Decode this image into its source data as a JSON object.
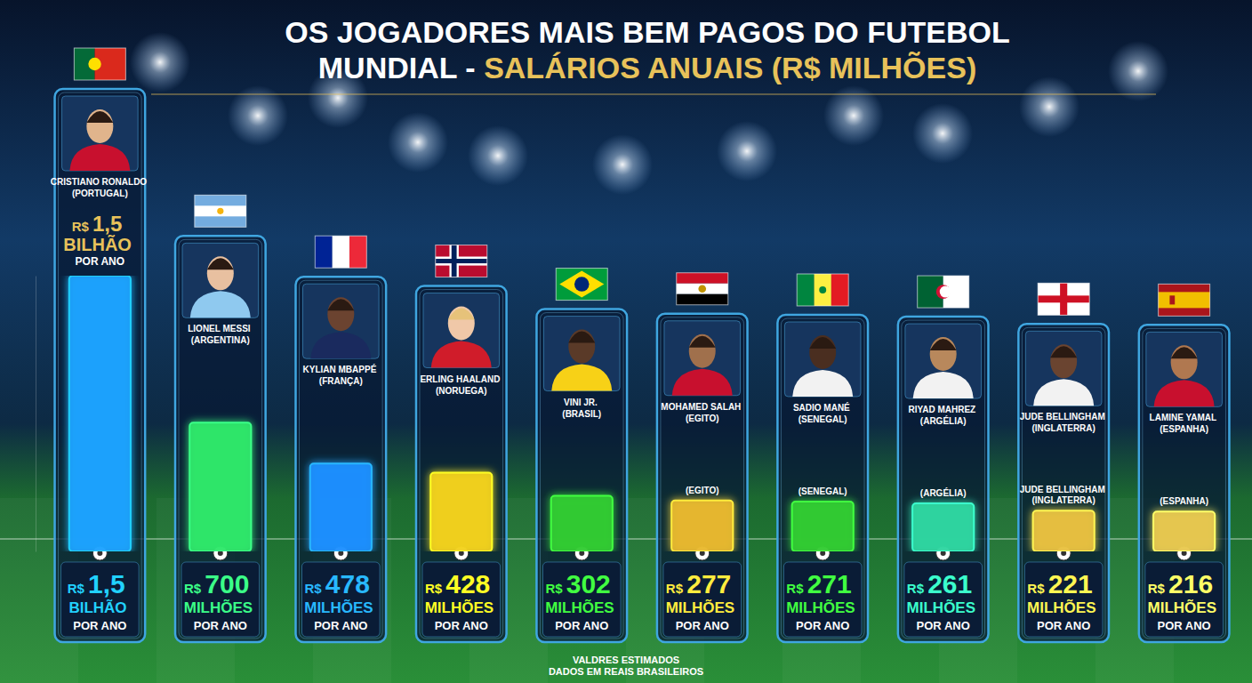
{
  "chart_data": {
    "type": "bar",
    "title": "OS JOGADORES MAIS BEM PAGOS DO FUTEBOL MUNDIAL - SALÁRIOS ANUAIS (R$ MILHÕES)",
    "categories": [
      "CRISTIANO RONALDO (PORTUGAL)",
      "LIONEL MESSI (ARGENTINA)",
      "KYLIAN MBAPPÉ (FRANÇA)",
      "ERLING HAALAND (NORUEGA)",
      "VINI JR. (BRASIL)",
      "MOHAMED SALAH (EGITO)",
      "SADIO MANÉ (SENEGAL)",
      "RIYAD MAHREZ (ARGÉLIA)",
      "JUDE BELLINGHAM (INGLATERRA)",
      "LAMINE YAMAL (ESPANHA)"
    ],
    "values": [
      1500,
      700,
      478,
      428,
      302,
      277,
      271,
      261,
      221,
      216
    ],
    "value_labels": [
      "R$ 1,5 BILHÃO POR ANO",
      "R$ 700 MILHÕES POR ANO",
      "R$ 478 MILHÕES POR ANO",
      "R$ 428 MILHÕES POR ANO",
      "R$ 302 MILHÕES POR ANO",
      "R$ 277 MILHÕES POR ANO",
      "R$ 271 MILHÕES POR ANO",
      "R$ 261 MILHÕES POR ANO",
      "R$ 221 MILHÕES POR ANO",
      "R$ 216 MILHÕES POR ANO"
    ],
    "colors": [
      "#1aa3ff",
      "#2ee86a",
      "#1f8fff",
      "#f2d21c",
      "#33cc33",
      "#e8b830",
      "#33cc33",
      "#2ed6a0",
      "#e8c040",
      "#e8c850"
    ],
    "ylim": [
      0,
      1500
    ],
    "tick_labels": false,
    "data_labels": true,
    "annotations": [
      {
        "text": "R$ 1,5 BILHÃO POR ANO",
        "category": "CRISTIANO RONALDO (PORTUGAL)"
      },
      {
        "text": "(EGITO)",
        "category": "MOHAMED SALAH (EGITO)"
      },
      {
        "text": "(SENEGAL)",
        "category": "SADIO MANÉ (SENEGAL)"
      },
      {
        "text": "(ARGÉLIA)",
        "category": "RIYAD MAHREZ (ARGÉLIA)"
      },
      {
        "text": "JUDE BELLINGHAM (INGLATERRA)",
        "category": "JUDE BELLINGHAM (INGLATERRA)"
      },
      {
        "text": "(ESPANHA)",
        "category": "LAMINE YAMAL (ESPANHA)"
      }
    ],
    "caption": [
      "VALDRES ESTIMADOS",
      "DADOS EM REAIS BRASILEIROS"
    ]
  }
}
